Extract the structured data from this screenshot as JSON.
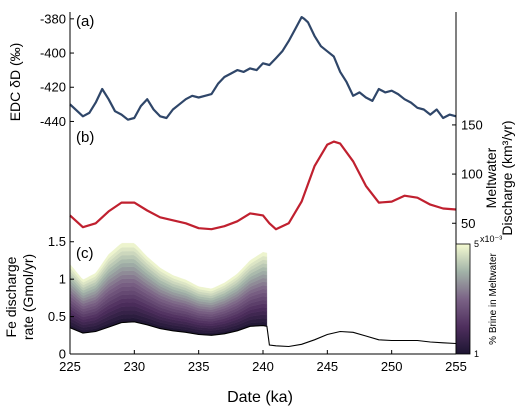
{
  "chart_data": {
    "type": "line",
    "x_axis": {
      "label": "Date (ka)",
      "lim": [
        225,
        255
      ],
      "ticks": [
        225,
        230,
        235,
        240,
        245,
        250,
        255
      ]
    },
    "panels": [
      {
        "panel_label": "(a)",
        "type": "line",
        "ylabel": "EDC δD (‰)",
        "ylim": [
          -445,
          -376
        ],
        "yticks": [
          -380,
          -400,
          -420,
          -440
        ],
        "color": "#2f4669",
        "series": [
          {
            "x": [
              225,
              226,
              226.5,
              227,
              227.5,
              228,
              228.5,
              229,
              229.5,
              230,
              230.5,
              231,
              231.5,
              232,
              232.5,
              233,
              233.5,
              234,
              234.5,
              235,
              235.5,
              236,
              236.5,
              237,
              237.5,
              238,
              238.5,
              239,
              239.5,
              240,
              240.5,
              241,
              241.5,
              242,
              242.5,
              243,
              243.2,
              243.5,
              244,
              244.5,
              245,
              245.5,
              246,
              246.5,
              247,
              247.5,
              248,
              248.5,
              249,
              249.5,
              250,
              250.5,
              251,
              251.5,
              252,
              252.5,
              253,
              253.5,
              254,
              254.5,
              255
            ],
            "y": [
              -430,
              -437,
              -435,
              -429,
              -421,
              -427,
              -434,
              -436,
              -439,
              -438,
              -431,
              -427,
              -433,
              -437,
              -438,
              -433,
              -430,
              -427,
              -425,
              -426,
              -425,
              -424,
              -418,
              -414,
              -412,
              -410,
              -411,
              -409,
              -410,
              -406,
              -407,
              -403,
              -399,
              -393,
              -386,
              -379,
              -380,
              -382,
              -390,
              -396,
              -399,
              -402,
              -411,
              -417,
              -425,
              -423,
              -426,
              -428,
              -421,
              -423,
              -422,
              -424,
              -427,
              -429,
              -432,
              -433,
              -436,
              -433,
              -438,
              -436,
              -437
            ]
          }
        ]
      },
      {
        "panel_label": "(b)",
        "type": "line",
        "ylabel": "Meltwater Discharge (km³/yr)",
        "ylim": [
          35,
          155
        ],
        "yticks": [
          50,
          100,
          150
        ],
        "ytick_side": "right",
        "color": "#c0202f",
        "series": [
          {
            "x": [
              225,
              226,
              227,
              228,
              229,
              230,
              231,
              232,
              233,
              234,
              235,
              236,
              237,
              238,
              239,
              240,
              240.5,
              241,
              242,
              243,
              244,
              245,
              245.5,
              246,
              247,
              248,
              249,
              250,
              251,
              252,
              253,
              254,
              255
            ],
            "y": [
              58,
              46,
              50,
              62,
              71,
              71,
              63,
              56,
              53,
              50,
              45,
              44,
              47,
              52,
              60,
              58,
              50,
              44,
              50,
              72,
              108,
              130,
              133,
              131,
              113,
              88,
              71,
              72,
              78,
              76,
              69,
              65,
              64
            ]
          }
        ]
      },
      {
        "panel_label": "(c)",
        "type": "area",
        "ylabel": "Fe discharge rate (Gmol/yr)",
        "ylim": [
          0,
          1.55
        ],
        "yticks": [
          0,
          0.5,
          1,
          1.5
        ],
        "series": [
          {
            "name": "lower bound",
            "color": "#000000",
            "x": [
              225,
              226,
              227,
              228,
              229,
              230,
              231,
              232,
              233,
              234,
              235,
              236,
              237,
              238,
              239,
              240,
              240.3,
              240.5,
              241,
              242,
              243,
              244,
              245,
              246,
              247,
              248,
              249,
              250,
              251,
              252,
              253,
              254,
              255
            ],
            "y": [
              0.35,
              0.28,
              0.3,
              0.36,
              0.42,
              0.43,
              0.39,
              0.34,
              0.31,
              0.29,
              0.26,
              0.25,
              0.27,
              0.31,
              0.37,
              0.38,
              0.37,
              0.12,
              0.11,
              0.1,
              0.13,
              0.19,
              0.26,
              0.3,
              0.29,
              0.24,
              0.19,
              0.18,
              0.18,
              0.18,
              0.16,
              0.15,
              0.14
            ]
          },
          {
            "name": "upper bound",
            "x": [
              225,
              226,
              227,
              228,
              229,
              230,
              231,
              232,
              233,
              234,
              235,
              236,
              237,
              238,
              239,
              240,
              240.3
            ],
            "y": [
              1.2,
              0.99,
              1.08,
              1.33,
              1.48,
              1.48,
              1.3,
              1.15,
              1.05,
              0.99,
              0.9,
              0.87,
              0.95,
              1.07,
              1.25,
              1.36,
              1.35
            ]
          }
        ],
        "colorbar": {
          "label": "% Brine in Meltwater",
          "ticks": [
            "1",
            "5"
          ],
          "multiplier": "x10⁻³",
          "colors": [
            "#1d1532",
            "#4f2f5e",
            "#7b6386",
            "#a2b3a8",
            "#f5fbd2"
          ]
        }
      }
    ]
  }
}
